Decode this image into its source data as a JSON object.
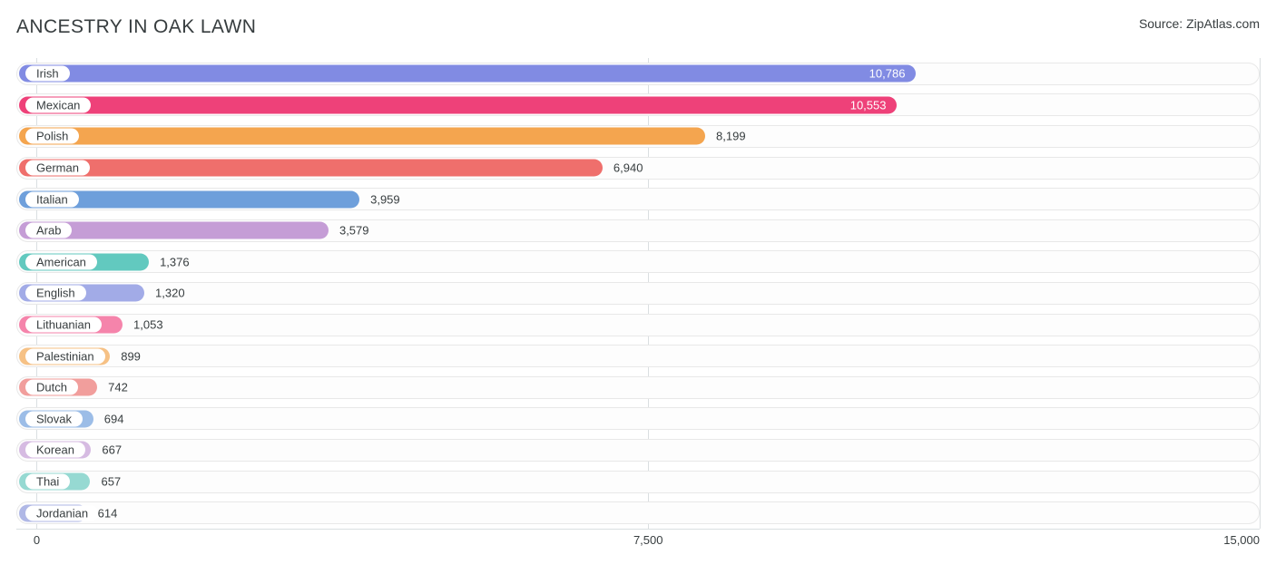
{
  "title": "ANCESTRY IN OAK LAWN",
  "source": "Source: ZipAtlas.com",
  "chart": {
    "type": "bar-horizontal",
    "xmin": -250,
    "xmax": 15000,
    "ticks": [
      {
        "value": 0,
        "label": "0"
      },
      {
        "value": 7500,
        "label": "7,500"
      },
      {
        "value": 15000,
        "label": "15,000"
      }
    ],
    "track_border_color": "#e8e8e8",
    "track_bg": "#fdfdfd",
    "grid_color": "#dadfe1",
    "text_color": "#373d3f",
    "label_fontsize": 13,
    "title_fontsize": 21,
    "bars": [
      {
        "label": "Irish",
        "value": 10786,
        "value_label": "10,786",
        "color": "#818be3",
        "value_inside": true
      },
      {
        "label": "Mexican",
        "value": 10553,
        "value_label": "10,553",
        "color": "#ee4179",
        "value_inside": true
      },
      {
        "label": "Polish",
        "value": 8199,
        "value_label": "8,199",
        "color": "#f4a54f",
        "value_inside": false
      },
      {
        "label": "German",
        "value": 6940,
        "value_label": "6,940",
        "color": "#ef6f6c",
        "value_inside": false
      },
      {
        "label": "Italian",
        "value": 3959,
        "value_label": "3,959",
        "color": "#6e9fdb",
        "value_inside": false
      },
      {
        "label": "Arab",
        "value": 3579,
        "value_label": "3,579",
        "color": "#c59dd6",
        "value_inside": false
      },
      {
        "label": "American",
        "value": 1376,
        "value_label": "1,376",
        "color": "#62c9bf",
        "value_inside": false
      },
      {
        "label": "English",
        "value": 1320,
        "value_label": "1,320",
        "color": "#a2abe7",
        "value_inside": false
      },
      {
        "label": "Lithuanian",
        "value": 1053,
        "value_label": "1,053",
        "color": "#f584ab",
        "value_inside": false
      },
      {
        "label": "Palestinian",
        "value": 899,
        "value_label": "899",
        "color": "#f6c185",
        "value_inside": false
      },
      {
        "label": "Dutch",
        "value": 742,
        "value_label": "742",
        "color": "#f19e9c",
        "value_inside": false
      },
      {
        "label": "Slovak",
        "value": 694,
        "value_label": "694",
        "color": "#9cbde7",
        "value_inside": false
      },
      {
        "label": "Korean",
        "value": 667,
        "value_label": "667",
        "color": "#d6bbe2",
        "value_inside": false
      },
      {
        "label": "Thai",
        "value": 657,
        "value_label": "657",
        "color": "#96d9d2",
        "value_inside": false
      },
      {
        "label": "Jordanian",
        "value": 614,
        "value_label": "614",
        "color": "#b0b8e6",
        "value_inside": false
      }
    ]
  }
}
